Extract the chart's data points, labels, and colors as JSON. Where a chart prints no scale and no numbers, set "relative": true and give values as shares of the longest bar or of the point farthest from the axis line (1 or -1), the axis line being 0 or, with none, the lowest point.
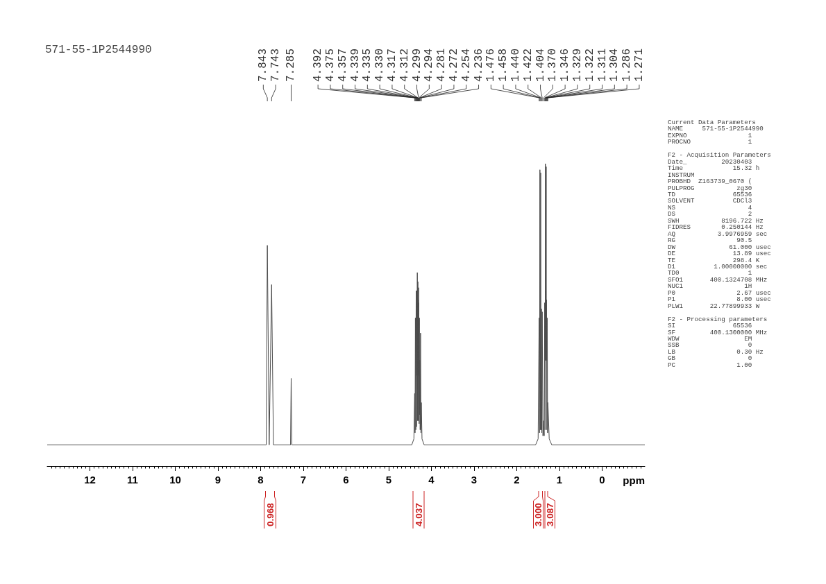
{
  "chart_data": {
    "type": "line",
    "title": "571-55-1P2544990",
    "xlabel": "ppm",
    "relative": true,
    "color": "#4d4d4d",
    "x": [
      13,
      7.87,
      7.843,
      7.8,
      7.743,
      7.7,
      7.3,
      7.285,
      7.27,
      4.46,
      4.41,
      4.392,
      4.383,
      4.375,
      4.366,
      4.357,
      4.348,
      4.339,
      4.337,
      4.335,
      4.333,
      4.33,
      4.323,
      4.317,
      4.3145,
      4.312,
      4.305,
      4.299,
      4.2965,
      4.294,
      4.287,
      4.281,
      4.276,
      4.272,
      4.263,
      4.254,
      4.245,
      4.236,
      4.22,
      4.17,
      1.56,
      1.5,
      1.476,
      1.467,
      1.458,
      1.449,
      1.44,
      1.431,
      1.422,
      1.413,
      1.404,
      1.387,
      1.37,
      1.358,
      1.346,
      1.337,
      1.329,
      1.3255,
      1.322,
      1.3165,
      1.311,
      1.3075,
      1.304,
      1.295,
      1.286,
      1.278,
      1.271,
      1.24,
      1.18,
      -1
    ],
    "values": [
      0.07,
      0.07,
      0.73,
      0.07,
      0.6,
      0.07,
      0.07,
      0.29,
      0.07,
      0.07,
      0.09,
      0.24,
      0.11,
      0.49,
      0.12,
      0.58,
      0.13,
      0.58,
      0.3,
      0.54,
      0.3,
      0.64,
      0.15,
      0.61,
      0.3,
      0.55,
      0.15,
      0.59,
      0.3,
      0.54,
      0.14,
      0.49,
      0.17,
      0.35,
      0.12,
      0.44,
      0.11,
      0.21,
      0.09,
      0.07,
      0.07,
      0.09,
      0.49,
      0.11,
      0.98,
      0.12,
      0.97,
      0.12,
      0.52,
      0.11,
      0.51,
      0.1,
      0.15,
      0.1,
      0.54,
      0.12,
      1,
      0.35,
      0.58,
      0.35,
      0.99,
      0.35,
      0.55,
      0.12,
      0.49,
      0.11,
      0.21,
      0.09,
      0.07,
      0.07
    ],
    "xlim": [
      13,
      -1
    ],
    "xticks": [
      12,
      11,
      10,
      9,
      8,
      7,
      6,
      5,
      4,
      3,
      2,
      1,
      0
    ],
    "annotations": [
      {
        "text": "7.843",
        "x": 7.843
      },
      {
        "text": "7.743",
        "x": 7.743
      },
      {
        "text": "7.285",
        "x": 7.285
      },
      {
        "text": "4.392",
        "x": 4.392
      },
      {
        "text": "4.375",
        "x": 4.375
      },
      {
        "text": "4.357",
        "x": 4.357
      },
      {
        "text": "4.339",
        "x": 4.339
      },
      {
        "text": "4.335",
        "x": 4.335
      },
      {
        "text": "4.330",
        "x": 4.33
      },
      {
        "text": "4.317",
        "x": 4.317
      },
      {
        "text": "4.312",
        "x": 4.312
      },
      {
        "text": "4.299",
        "x": 4.299
      },
      {
        "text": "4.294",
        "x": 4.294
      },
      {
        "text": "4.281",
        "x": 4.281
      },
      {
        "text": "4.272",
        "x": 4.272
      },
      {
        "text": "4.254",
        "x": 4.254
      },
      {
        "text": "4.236",
        "x": 4.236
      },
      {
        "text": "1.476",
        "x": 1.476
      },
      {
        "text": "1.458",
        "x": 1.458
      },
      {
        "text": "1.440",
        "x": 1.44
      },
      {
        "text": "1.422",
        "x": 1.422
      },
      {
        "text": "1.404",
        "x": 1.404
      },
      {
        "text": "1.370",
        "x": 1.37
      },
      {
        "text": "1.346",
        "x": 1.346
      },
      {
        "text": "1.329",
        "x": 1.329
      },
      {
        "text": "1.322",
        "x": 1.322
      },
      {
        "text": "1.311",
        "x": 1.311
      },
      {
        "text": "1.304",
        "x": 1.304
      },
      {
        "text": "1.286",
        "x": 1.286
      },
      {
        "text": "1.271",
        "x": 1.271
      },
      "0.968",
      "4.037",
      "3.000",
      "3.087",
      "Current Data Parameters\nNAME     571-55-1P2544990\nEXPNO                1\nPROCNO               1",
      "F2 - Acquisition Parameters\nDate_         20230403\nTime             15.32 h\nINSTRUM\nPROBHD  Z163739_0670 (\nPULPROG           zg30\nTD               65536\nSOLVENT          CDCl3\nNS                   4\nDS                   2\nSWH           8196.722 Hz\nFIDRES        0.250144 Hz\nAQ           3.9976959 sec\nRG                90.5\nDW              61.000 usec\nDE               13.89 usec\nTE               298.4 K\nD1          1.00000000 sec\nTD0                  1\nSFO1       400.1324708 MHz\nNUC1                1H\nP0                2.67 usec\nP1                8.00 usec\nPLW1       22.77899933 W",
      "F2 - Processing parameters\nSI               65536\nSF         400.1300000 MHz\nWDW                 EM\nSSB                  0\nLB                0.30 Hz\nGB                   0\nPC                1.00"
    ]
  }
}
